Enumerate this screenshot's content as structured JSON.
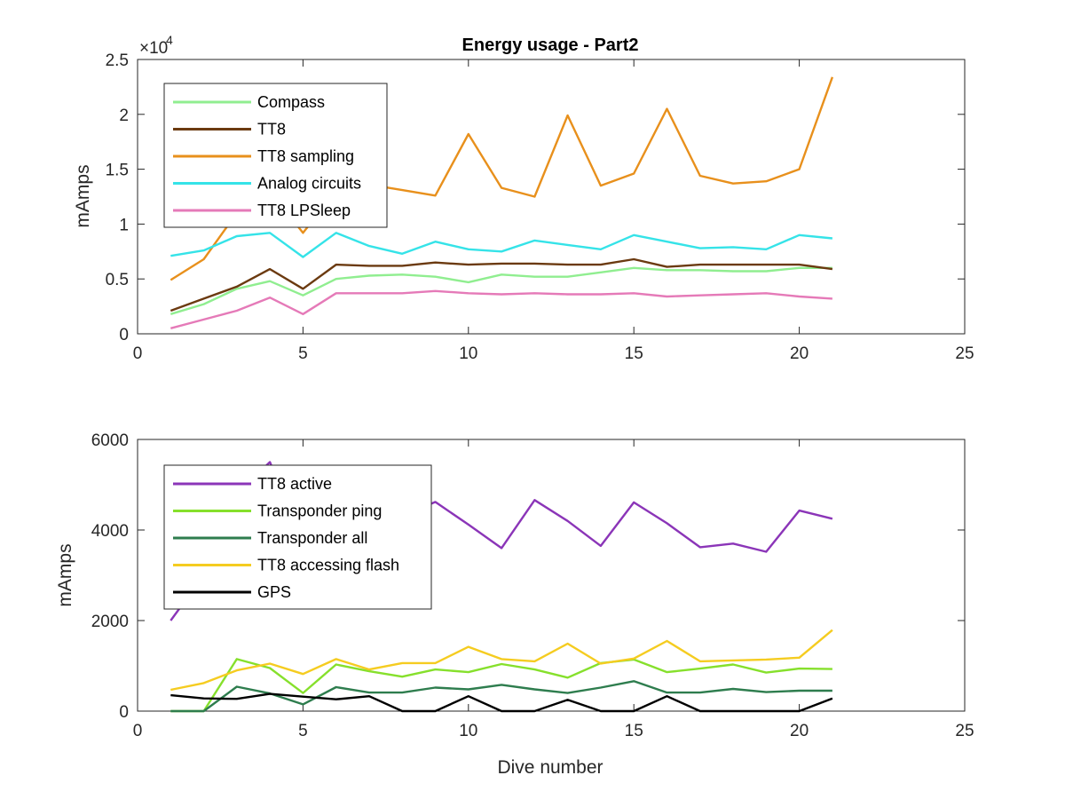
{
  "chart_data": [
    {
      "type": "line",
      "title": "Energy usage - Part2",
      "xlabel": "",
      "ylabel": "mAmps",
      "xlim": [
        0,
        25
      ],
      "ylim": [
        0,
        25000
      ],
      "xticks": [
        0,
        5,
        10,
        15,
        20,
        25
      ],
      "yticks": [
        0,
        5000,
        10000,
        15000,
        20000,
        25000
      ],
      "ytick_labels": [
        "0",
        "0.5",
        "1",
        "1.5",
        "2",
        "2.5"
      ],
      "y_exponent_base": "×10",
      "y_exponent_power": "4",
      "legend_position": "top-left",
      "x": [
        1,
        2,
        3,
        4,
        5,
        6,
        7,
        8,
        9,
        10,
        11,
        12,
        13,
        14,
        15,
        16,
        17,
        18,
        19,
        20,
        21
      ],
      "series": [
        {
          "name": "Compass",
          "color": "#90ee90",
          "values": [
            1800,
            2700,
            4100,
            4800,
            3500,
            5000,
            5300,
            5400,
            5200,
            4700,
            5400,
            5200,
            5200,
            5600,
            6000,
            5800,
            5800,
            5700,
            5700,
            6000,
            6000
          ]
        },
        {
          "name": "TT8",
          "color": "#6b3a10",
          "values": [
            2100,
            3200,
            4300,
            5900,
            4100,
            6300,
            6200,
            6200,
            6500,
            6300,
            6400,
            6400,
            6300,
            6300,
            6800,
            6100,
            6300,
            6300,
            6300,
            6300,
            5900
          ]
        },
        {
          "name": "TT8 sampling",
          "color": "#e8901c",
          "values": [
            4900,
            6800,
            11000,
            13000,
            9200,
            13000,
            13600,
            13100,
            12600,
            18200,
            13300,
            12500,
            19900,
            13500,
            14600,
            20500,
            14400,
            13700,
            13900,
            15000,
            23400
          ]
        },
        {
          "name": "Analog circuits",
          "color": "#35e3e8",
          "values": [
            7100,
            7600,
            8900,
            9200,
            7000,
            9200,
            8000,
            7300,
            8400,
            7700,
            7500,
            8500,
            8100,
            7700,
            9000,
            8400,
            7800,
            7900,
            7700,
            9000,
            8700
          ]
        },
        {
          "name": "TT8 LPSleep",
          "color": "#e57ab8",
          "values": [
            500,
            1300,
            2100,
            3300,
            1800,
            3700,
            3700,
            3700,
            3900,
            3700,
            3600,
            3700,
            3600,
            3600,
            3700,
            3400,
            3500,
            3600,
            3700,
            3400,
            3200
          ]
        }
      ]
    },
    {
      "type": "line",
      "title": "",
      "xlabel": "Dive number",
      "ylabel": "mAmps",
      "xlim": [
        0,
        25
      ],
      "ylim": [
        0,
        6000
      ],
      "xticks": [
        0,
        5,
        10,
        15,
        20,
        25
      ],
      "yticks": [
        0,
        2000,
        4000,
        6000
      ],
      "ytick_labels": [
        "0",
        "2000",
        "4000",
        "6000"
      ],
      "legend_position": "top-left",
      "x": [
        1,
        2,
        3,
        4,
        5,
        6,
        7,
        8,
        9,
        10,
        11,
        12,
        13,
        14,
        15,
        16,
        17,
        18,
        19,
        20,
        21
      ],
      "series": [
        {
          "name": "TT8 active",
          "color": "#8b35b8",
          "values": [
            2000,
            3000,
            4800,
            5500,
            3800,
            5000,
            4900,
            4300,
            4620,
            4120,
            3600,
            4660,
            4200,
            3650,
            4610,
            4150,
            3620,
            3700,
            3520,
            4430,
            4250
          ]
        },
        {
          "name": "Transponder ping",
          "color": "#86e02c",
          "values": [
            0,
            0,
            1150,
            950,
            400,
            1030,
            880,
            760,
            920,
            860,
            1040,
            920,
            740,
            1060,
            1140,
            860,
            940,
            1030,
            850,
            940,
            930
          ]
        },
        {
          "name": "Transponder all",
          "color": "#2e7d4e",
          "values": [
            0,
            0,
            540,
            390,
            150,
            530,
            410,
            410,
            520,
            480,
            580,
            480,
            400,
            520,
            660,
            410,
            410,
            490,
            420,
            450,
            450
          ]
        },
        {
          "name": "TT8 accessing flash",
          "color": "#f5cc20",
          "values": [
            470,
            620,
            900,
            1050,
            820,
            1150,
            920,
            1060,
            1060,
            1420,
            1150,
            1100,
            1490,
            1050,
            1160,
            1550,
            1100,
            1120,
            1140,
            1180,
            1790
          ]
        },
        {
          "name": "GPS",
          "color": "#000000",
          "values": [
            350,
            280,
            270,
            380,
            320,
            260,
            330,
            0,
            0,
            330,
            0,
            0,
            250,
            0,
            0,
            330,
            0,
            0,
            0,
            0,
            280
          ]
        }
      ]
    }
  ]
}
